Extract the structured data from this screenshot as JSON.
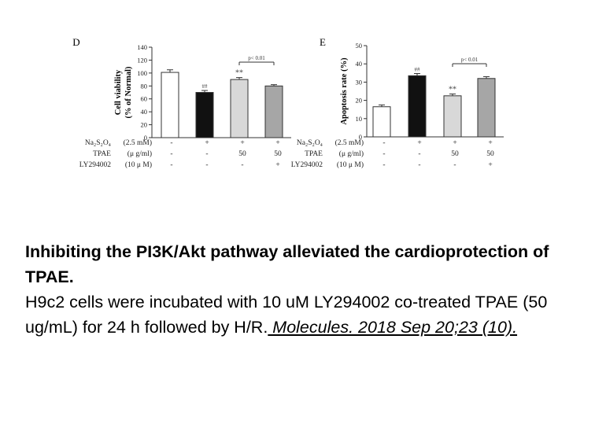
{
  "chart_data": [
    {
      "type": "bar",
      "panel_label": "D",
      "ylabel_line1": "Cell viability",
      "ylabel_line2": "(% of Normal)",
      "ylim": [
        0,
        140
      ],
      "yticks": [
        0,
        20,
        40,
        60,
        80,
        100,
        120,
        140
      ],
      "values": [
        101,
        70,
        90,
        80
      ],
      "errors": [
        4,
        3,
        3,
        2
      ],
      "bar_colors": [
        "#ffffff",
        "#111111",
        "#d8d8d8",
        "#a6a6a6"
      ],
      "markers": [
        "",
        "##",
        "**",
        ""
      ],
      "bracket_label": "p< 0.01",
      "rows": [
        {
          "name": "Na₂S₂O₄",
          "unit": "(2.5 mM)",
          "cells": [
            "-",
            "+",
            "+",
            "+"
          ]
        },
        {
          "name": "TPAE",
          "unit": "(μ g/ml)",
          "cells": [
            "-",
            "-",
            "50",
            "50"
          ]
        },
        {
          "name": "LY294002",
          "unit": "(10 μ M)",
          "cells": [
            "-",
            "-",
            "-",
            "+"
          ]
        }
      ]
    },
    {
      "type": "bar",
      "panel_label": "E",
      "ylabel": "Apoptosis rate (%)",
      "ylim": [
        0,
        50
      ],
      "yticks": [
        0,
        10,
        20,
        30,
        40,
        50
      ],
      "values": [
        16.5,
        33.5,
        22.5,
        32
      ],
      "errors": [
        1,
        1.2,
        1,
        1
      ],
      "bar_colors": [
        "#ffffff",
        "#111111",
        "#d8d8d8",
        "#a6a6a6"
      ],
      "markers": [
        "",
        "##",
        "**",
        ""
      ],
      "bracket_label": "p< 0.01",
      "rows": [
        {
          "name": "Na₂S₂O₄",
          "unit": "(2.5 mM)",
          "cells": [
            "-",
            "+",
            "+",
            "+"
          ]
        },
        {
          "name": "TPAE",
          "unit": "(μ g/ml)",
          "cells": [
            "-",
            "-",
            "50",
            "50"
          ]
        },
        {
          "name": "LY294002",
          "unit": "(10 μ M)",
          "cells": [
            "-",
            "-",
            "-",
            "+"
          ]
        }
      ]
    }
  ],
  "caption": {
    "title": "Inhibiting the PI3K/Akt pathway alleviated the cardioprotection of TPAE.",
    "body": "H9c2 cells were incubated with 10 uM LY294002 co-treated TPAE (50 ug/mL) for 24 h followed by H/R.",
    "citation": " Molecules. 2018 Sep 20;23 (10)."
  }
}
